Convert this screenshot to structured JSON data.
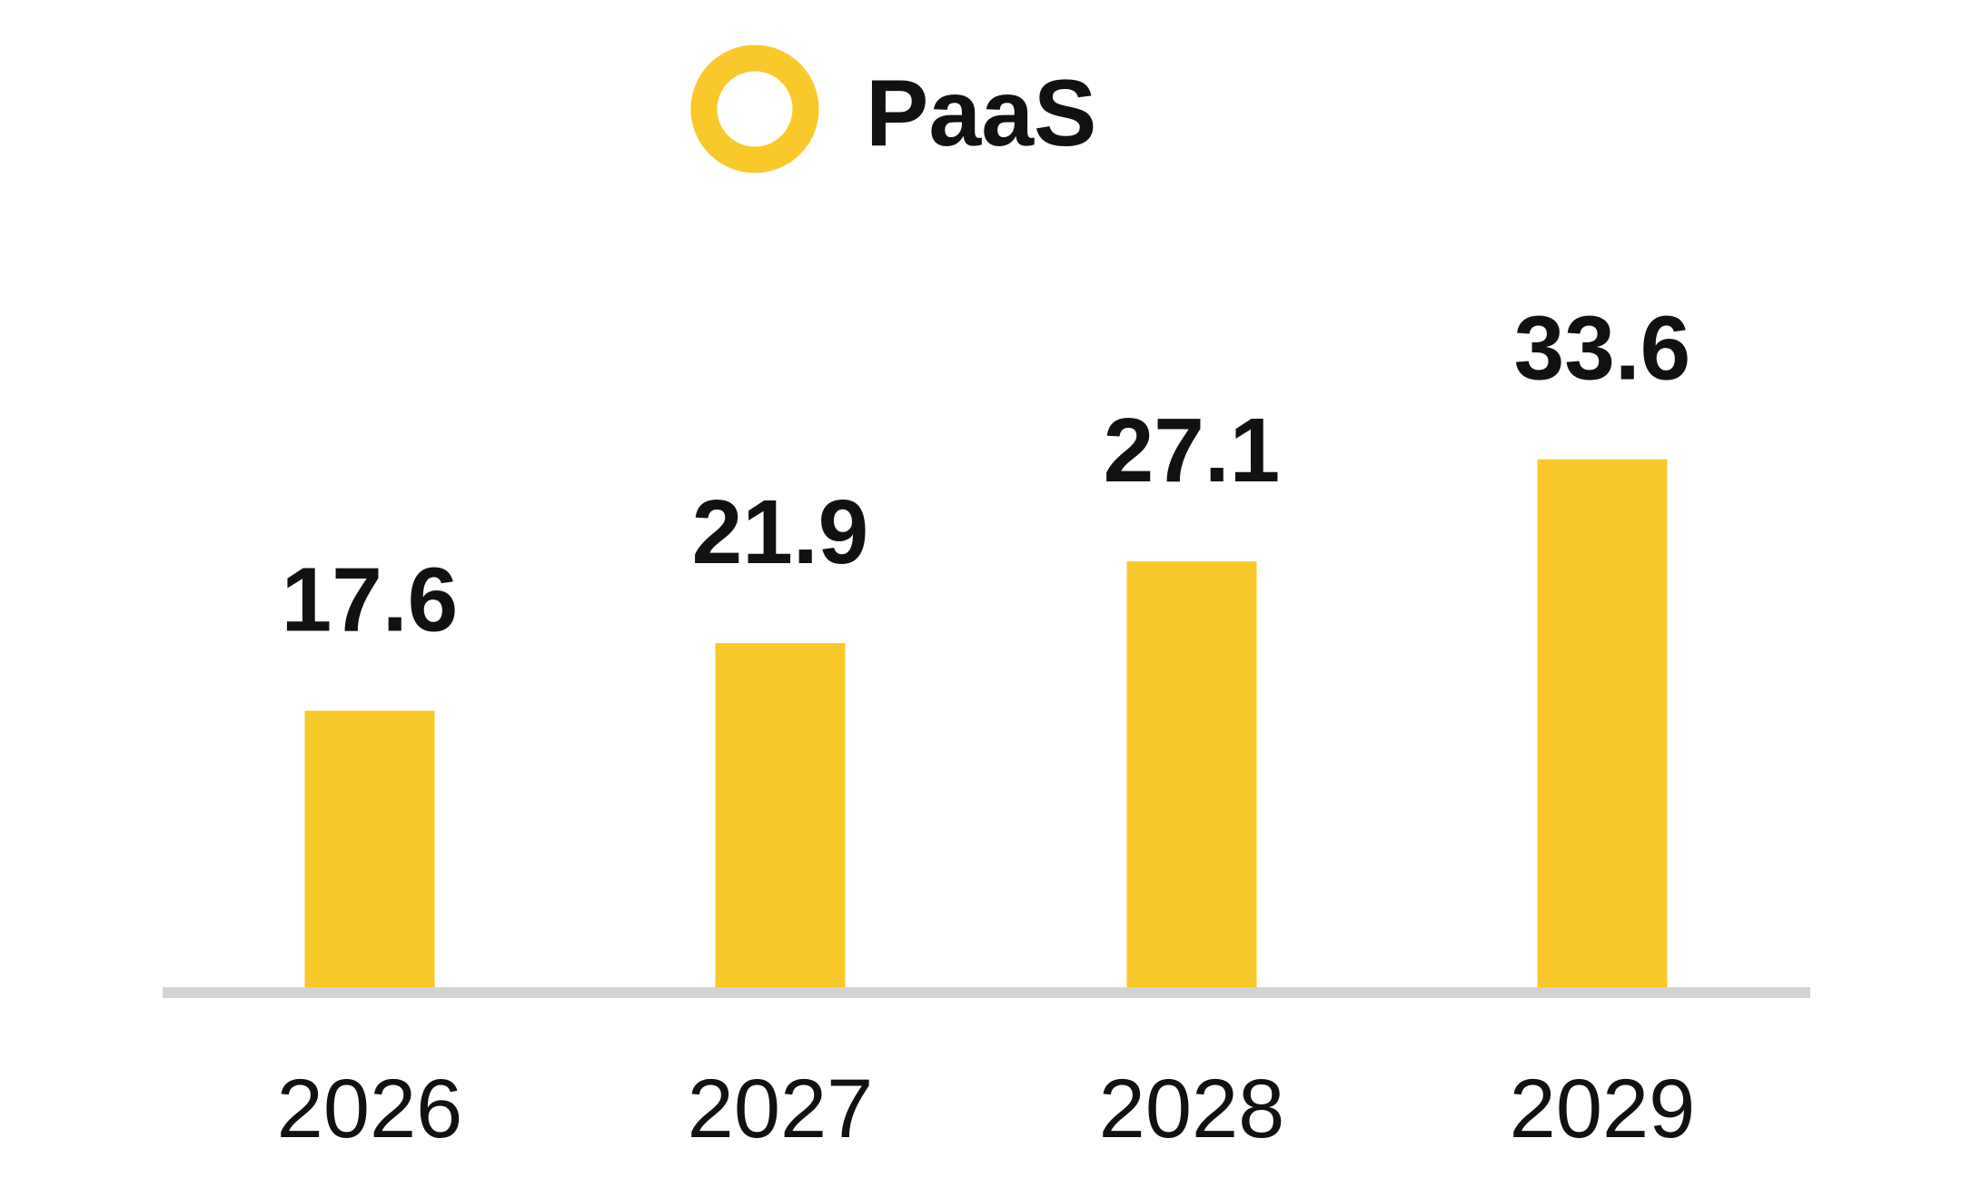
{
  "chart_data": {
    "type": "bar",
    "categories": [
      "2026",
      "2027",
      "2028",
      "2029"
    ],
    "series": [
      {
        "name": "PaaS",
        "values": [
          17.6,
          21.9,
          27.1,
          33.6
        ],
        "value_labels": [
          "17.6",
          "21.9",
          "27.1",
          "33.6"
        ],
        "color": "#F9C82B"
      }
    ],
    "title": "",
    "xlabel": "",
    "ylabel": "",
    "ylim": [
      0,
      38
    ],
    "grid": false,
    "legend": "top-center",
    "baseline_color": "#D3D3D3"
  }
}
